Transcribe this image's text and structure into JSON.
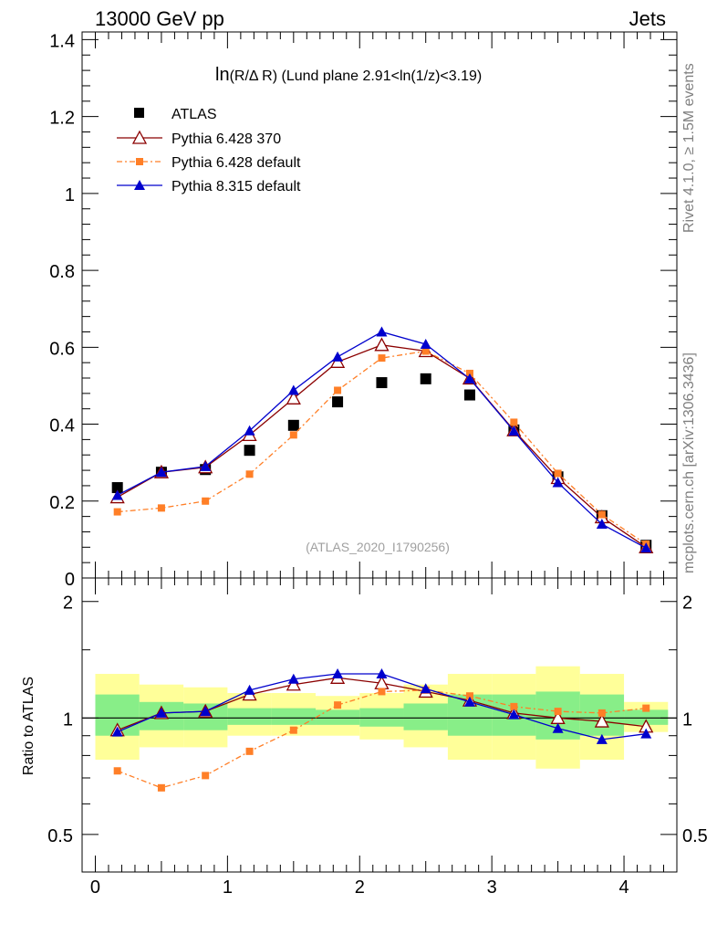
{
  "header": {
    "left": "13000 GeV pp",
    "right": "Jets"
  },
  "side_labels": {
    "rivet": "Rivet 4.1.0, ≥ 1.5M events",
    "mcplots": "mcplots.cern.ch [arXiv:1306.3436]"
  },
  "colors": {
    "atlas": "#000000",
    "py6_370": "#8b0000",
    "py6_default": "#ff7f27",
    "py8_default": "#0000cd",
    "band_outer": "#ffff99",
    "band_inner": "#88ee88",
    "analysis_tag": "#a0a0a0"
  },
  "chart_data": [
    {
      "type": "line",
      "title_main": "ln",
      "title_small": "(R/Δ R)",
      "title_rest": " (Lund plane 2.91<ln(1/z)<3.19)",
      "analysis_tag": "(ATLAS_2020_I1790256)",
      "xlabel": "",
      "ylabel": "",
      "xlim": [
        -0.1,
        4.4
      ],
      "ylim": [
        0,
        1.42
      ],
      "y_ticks": [
        "0",
        "0.2",
        "0.4",
        "0.6",
        "0.8",
        "1",
        "1.2",
        "1.4"
      ],
      "y_tick_values": [
        0,
        0.2,
        0.4,
        0.6,
        0.8,
        1.0,
        1.2,
        1.4
      ],
      "x": [
        0.167,
        0.5,
        0.833,
        1.167,
        1.5,
        1.833,
        2.167,
        2.5,
        2.833,
        3.167,
        3.5,
        3.833,
        4.167
      ],
      "series": [
        {
          "key": "atlas",
          "name": "ATLAS",
          "marker": "square",
          "line": "none",
          "values": [
            0.235,
            0.275,
            0.282,
            0.332,
            0.397,
            0.458,
            0.508,
            0.518,
            0.476,
            0.385,
            0.263,
            0.162,
            0.085
          ]
        },
        {
          "key": "py6_370",
          "name": "Pythia 6.428 370",
          "marker": "triangle-open",
          "line": "solid",
          "values": [
            0.21,
            0.275,
            0.288,
            0.372,
            0.467,
            0.562,
            0.606,
            0.59,
            0.519,
            0.384,
            0.26,
            0.158,
            0.08
          ]
        },
        {
          "key": "py6_default",
          "name": "Pythia 6.428 default",
          "marker": "square-small",
          "line": "dashdot",
          "values": [
            0.172,
            0.182,
            0.2,
            0.27,
            0.372,
            0.488,
            0.572,
            0.59,
            0.532,
            0.405,
            0.272,
            0.165,
            0.088
          ]
        },
        {
          "key": "py8_default",
          "name": "Pythia 8.315 default",
          "marker": "triangle-filled",
          "line": "solid",
          "values": [
            0.215,
            0.275,
            0.29,
            0.383,
            0.488,
            0.575,
            0.64,
            0.608,
            0.518,
            0.382,
            0.248,
            0.14,
            0.078
          ]
        }
      ]
    },
    {
      "type": "line",
      "ylabel": "Ratio to ATLAS",
      "ylim": [
        0.4,
        2.3
      ],
      "y_scale": "log",
      "y_ticks": [
        "0.5",
        "1",
        "2"
      ],
      "y_tick_values": [
        0.5,
        1,
        2
      ],
      "x_ticks": [
        "0",
        "1",
        "2",
        "3",
        "4"
      ],
      "x_tick_values": [
        0,
        1,
        2,
        3,
        4
      ],
      "band_edges": [
        0,
        0.333,
        0.667,
        1.0,
        1.333,
        1.667,
        2.0,
        2.333,
        2.667,
        3.0,
        3.333,
        3.667,
        4.0,
        4.333
      ],
      "band_outer": [
        [
          0.78,
          1.3
        ],
        [
          0.84,
          1.22
        ],
        [
          0.84,
          1.2
        ],
        [
          0.9,
          1.16
        ],
        [
          0.9,
          1.16
        ],
        [
          0.9,
          1.14
        ],
        [
          0.88,
          1.16
        ],
        [
          0.84,
          1.22
        ],
        [
          0.78,
          1.3
        ],
        [
          0.78,
          1.3
        ],
        [
          0.74,
          1.36
        ],
        [
          0.78,
          1.3
        ],
        [
          0.92,
          1.1
        ]
      ],
      "band_inner": [
        [
          0.9,
          1.15
        ],
        [
          0.93,
          1.1
        ],
        [
          0.93,
          1.09
        ],
        [
          0.96,
          1.06
        ],
        [
          0.96,
          1.06
        ],
        [
          0.96,
          1.05
        ],
        [
          0.95,
          1.06
        ],
        [
          0.93,
          1.09
        ],
        [
          0.9,
          1.15
        ],
        [
          0.9,
          1.15
        ],
        [
          0.88,
          1.17
        ],
        [
          0.9,
          1.15
        ],
        [
          0.96,
          1.05
        ]
      ],
      "series": [
        {
          "key": "py6_370",
          "name": "Pythia 6.428 370",
          "values": [
            0.93,
            1.03,
            1.04,
            1.15,
            1.22,
            1.27,
            1.23,
            1.17,
            1.11,
            1.03,
            1.0,
            0.98,
            0.95
          ]
        },
        {
          "key": "py6_default",
          "name": "Pythia 6.428 default",
          "values": [
            0.73,
            0.66,
            0.71,
            0.82,
            0.93,
            1.08,
            1.17,
            1.18,
            1.14,
            1.07,
            1.04,
            1.03,
            1.06
          ]
        },
        {
          "key": "py8_default",
          "name": "Pythia 8.315 default",
          "values": [
            0.92,
            1.03,
            1.04,
            1.18,
            1.26,
            1.3,
            1.3,
            1.19,
            1.1,
            1.02,
            0.94,
            0.88,
            0.91
          ]
        }
      ]
    }
  ]
}
